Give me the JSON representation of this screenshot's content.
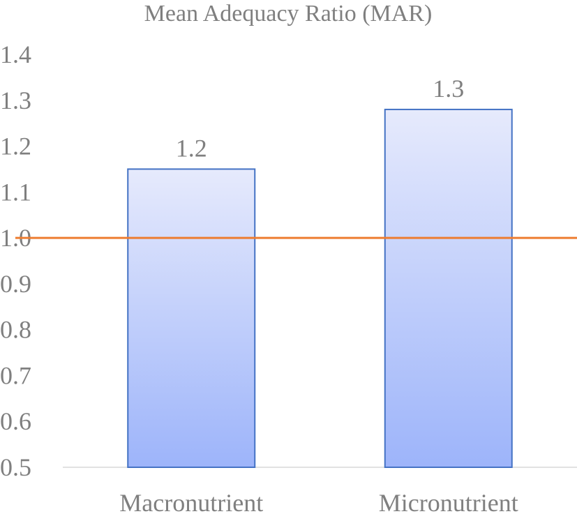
{
  "chart_data": {
    "type": "bar",
    "title": "Mean Adequacy Ratio (MAR)",
    "xlabel": "",
    "ylabel": "",
    "categories": [
      "Macronutrient",
      "Micronutrient"
    ],
    "values": [
      1.15,
      1.28
    ],
    "data_labels": [
      "1.2",
      "1.3"
    ],
    "ylim": [
      0.5,
      1.4
    ],
    "yticks": [
      "0.5",
      "0.6",
      "0.7",
      "0.8",
      "0.9",
      "1.0",
      "1.1",
      "1.2",
      "1.3",
      "1.4"
    ],
    "reference_line": {
      "value": 1.0,
      "color": "#ed7d31"
    },
    "bar_gradient": {
      "top": "#e6eafc",
      "bottom": "#9db4fa"
    },
    "bar_border_color": "#4472c4",
    "text_color": "#7f7f7f",
    "grid": false,
    "legend": "none"
  }
}
